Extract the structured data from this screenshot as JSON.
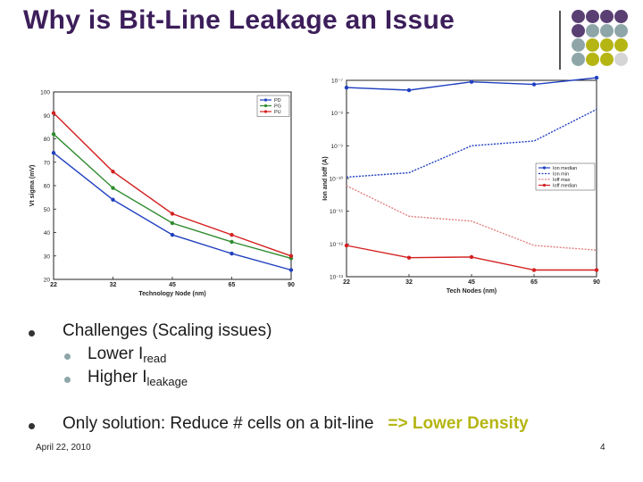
{
  "slide": {
    "title": "Why is Bit-Line Leakage an Issue",
    "bullets": {
      "b1": "Challenges (Scaling issues)",
      "b1_sub1_main": "Lower I",
      "b1_sub1_sub": "read",
      "b1_sub2_main": "Higher I",
      "b1_sub2_sub": "leakage",
      "b2_main": "Only solution: Reduce # cells on a bit-line",
      "b2_accent": "=> Lower Density"
    },
    "footer": {
      "date": "April 22, 2010",
      "page": "4"
    }
  },
  "colors": {
    "title": "#3c1e5a",
    "accent": "#b5b514",
    "purple": "#5a3f73",
    "teal": "#8fa6a8",
    "olive": "#b5b514",
    "grey": "#d5d5d5"
  },
  "decor_dots": [
    [
      "purple",
      "purple",
      "purple",
      "purple"
    ],
    [
      "purple",
      "teal",
      "teal",
      "teal"
    ],
    [
      "teal",
      "olive",
      "olive",
      "olive"
    ],
    [
      "teal",
      "olive",
      "olive",
      "grey"
    ]
  ],
  "chart_data": [
    {
      "type": "line",
      "xlabel": "Technology Node (nm)",
      "ylabel": "Vt sigma (mV)",
      "categories": [
        "22",
        "32",
        "45",
        "65",
        "90"
      ],
      "ylim": [
        20,
        100
      ],
      "yticks": [
        "20",
        "30",
        "40",
        "50",
        "60",
        "70",
        "80",
        "90",
        "100"
      ],
      "grid": false,
      "legend_position": "top-right",
      "series": [
        {
          "name": "PD",
          "color": "#1f3fbf",
          "values": [
            74,
            54,
            39,
            31,
            24
          ]
        },
        {
          "name": "PG",
          "color": "#2e8b2e",
          "values": [
            82,
            59,
            44,
            36,
            29
          ]
        },
        {
          "name": "PU",
          "color": "#d42020",
          "values": [
            91,
            66,
            48,
            39,
            30
          ]
        }
      ]
    },
    {
      "type": "line",
      "xlabel": "Tech Nodes (nm)",
      "ylabel": "Ion and Ioff (A)",
      "categories": [
        "22",
        "32",
        "45",
        "65",
        "90"
      ],
      "yscale": "log",
      "ylim": [
        1e-13,
        1e-07
      ],
      "yticks": [
        "10⁻¹³",
        "10⁻¹²",
        "10⁻¹¹",
        "10⁻¹⁰",
        "10⁻⁹",
        "10⁻⁸",
        "10⁻⁷"
      ],
      "grid": false,
      "legend_position": "center-right",
      "series": [
        {
          "name": "Ion median",
          "color": "#1f3fbf",
          "marker": true,
          "dash": false,
          "values": [
            6e-08,
            5e-08,
            9e-08,
            7.5e-08,
            1.2e-07
          ]
        },
        {
          "name": "Ion min",
          "color": "#1f3fbf",
          "marker": false,
          "dash": true,
          "values": [
            1.1e-10,
            1.5e-10,
            1e-09,
            1.4e-09,
            1.3e-08
          ]
        },
        {
          "name": "Ioff max",
          "color": "#e08080",
          "marker": false,
          "dash": true,
          "values": [
            6e-11,
            7e-12,
            5e-12,
            9e-13,
            6.5e-13
          ]
        },
        {
          "name": "Ioff median",
          "color": "#d42020",
          "marker": true,
          "dash": false,
          "values": [
            9e-13,
            3.8e-13,
            4e-13,
            1.6e-13,
            1.6e-13
          ]
        }
      ]
    }
  ]
}
